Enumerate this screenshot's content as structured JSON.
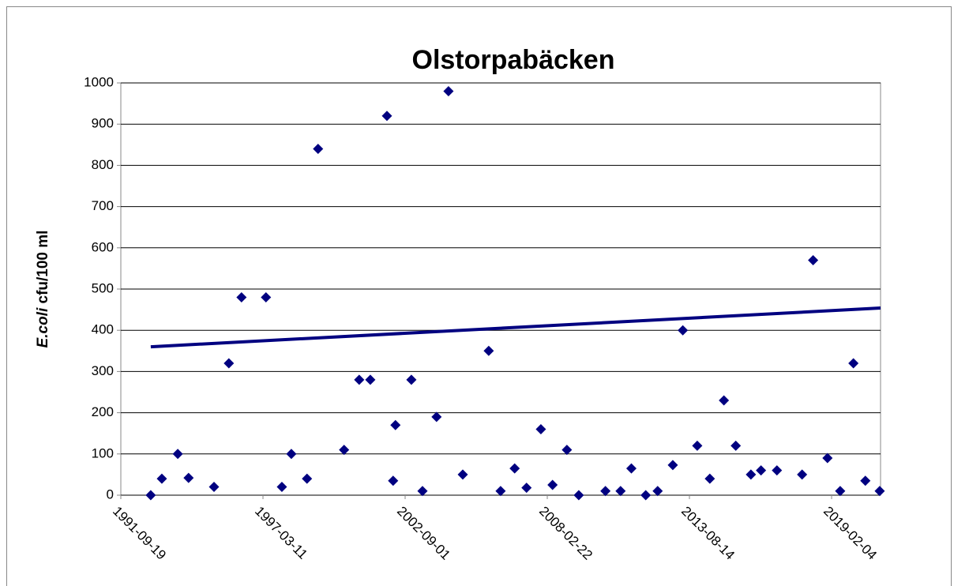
{
  "chart_data": {
    "type": "scatter",
    "title": "Olstorpabäcken",
    "ylabel": {
      "italic": "E.coli",
      "rest": " cfu/100 ml"
    },
    "x": [
      "1992-11-13",
      "1993-04-18",
      "1993-11-28",
      "1994-04-29",
      "1995-04-22",
      "1995-11-17",
      "1996-05-13",
      "1997-04-22",
      "1997-12-02",
      "1998-04-14",
      "1998-11-20",
      "1999-04-25",
      "2000-04-25",
      "2000-11-24",
      "2001-04-29",
      "2001-12-19",
      "2002-03-16",
      "2002-04-18",
      "2002-11-28",
      "2003-05-03",
      "2003-11-17",
      "2004-05-03",
      "2004-11-20",
      "2005-11-20",
      "2006-05-06",
      "2006-11-20",
      "2007-05-06",
      "2007-11-24",
      "2008-05-06",
      "2008-11-24",
      "2009-05-10",
      "2010-05-20",
      "2010-12-19",
      "2011-05-20",
      "2011-12-08",
      "2012-05-24",
      "2012-12-23",
      "2013-05-13",
      "2013-12-02",
      "2014-05-28",
      "2014-12-12",
      "2015-05-28",
      "2015-12-27",
      "2016-05-17",
      "2016-12-27",
      "2017-12-16",
      "2018-05-20",
      "2018-12-08",
      "2019-06-05",
      "2019-12-08",
      "2020-05-24",
      "2020-12-12"
    ],
    "values": [
      0,
      40,
      100,
      42,
      20,
      320,
      480,
      480,
      20,
      100,
      40,
      840,
      110,
      280,
      280,
      920,
      35,
      170,
      280,
      10,
      190,
      980,
      50,
      350,
      10,
      65,
      18,
      160,
      25,
      110,
      0,
      10,
      10,
      65,
      0,
      10,
      73,
      400,
      120,
      40,
      230,
      120,
      50,
      60,
      60,
      50,
      570,
      90,
      10,
      320,
      35,
      10
    ],
    "color": "#000080",
    "trend": {
      "x": [
        "1992-11-13",
        "2020-12-24"
      ],
      "values": [
        360,
        454
      ],
      "color": "#000080"
    },
    "xlim": [
      "1991-09-19",
      "2020-12-24"
    ],
    "xticks": [
      "1991-09-19",
      "1997-03-11",
      "2002-09-01",
      "2008-02-22",
      "2013-08-14",
      "2019-02-04"
    ],
    "ylim": [
      0,
      1000
    ],
    "yticks": [
      0,
      100,
      200,
      300,
      400,
      500,
      600,
      700,
      800,
      900,
      1000
    ],
    "grid": true
  }
}
